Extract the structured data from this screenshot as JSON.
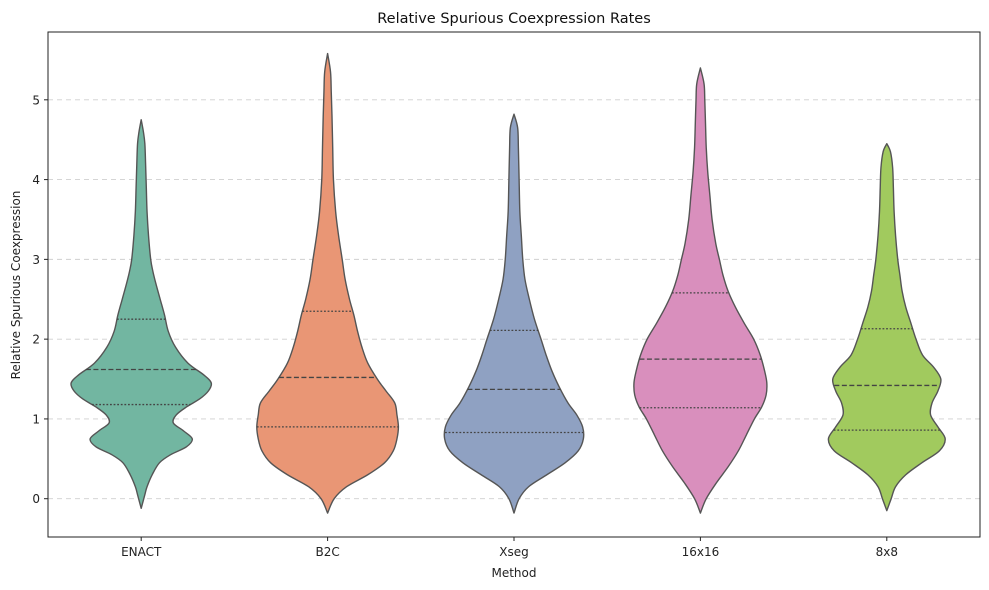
{
  "chart_data": {
    "type": "violin",
    "title": "Relative Spurious Coexpression Rates",
    "xlabel": "Method",
    "ylabel": "Relative Spurious Coexpression",
    "ylim": [
      -0.48,
      5.85
    ],
    "yticks": [
      0,
      1,
      2,
      3,
      4,
      5
    ],
    "categories": [
      "ENACT",
      "B2C",
      "Xseg",
      "16x16",
      "8x8"
    ],
    "grid": "y-dashed",
    "inner": "quartiles",
    "series": [
      {
        "category": "ENACT",
        "color": "#72b6a1",
        "min": -0.12,
        "max": 4.75,
        "quartiles": [
          1.18,
          1.62,
          2.25
        ],
        "density": [
          [
            -0.12,
            0.0
          ],
          [
            0.05,
            0.05
          ],
          [
            0.15,
            0.08
          ],
          [
            0.3,
            0.15
          ],
          [
            0.45,
            0.25
          ],
          [
            0.55,
            0.4
          ],
          [
            0.65,
            0.62
          ],
          [
            0.75,
            0.7
          ],
          [
            0.85,
            0.58
          ],
          [
            0.95,
            0.44
          ],
          [
            1.05,
            0.48
          ],
          [
            1.15,
            0.62
          ],
          [
            1.25,
            0.8
          ],
          [
            1.35,
            0.92
          ],
          [
            1.45,
            0.96
          ],
          [
            1.55,
            0.86
          ],
          [
            1.7,
            0.64
          ],
          [
            1.9,
            0.47
          ],
          [
            2.1,
            0.37
          ],
          [
            2.3,
            0.32
          ],
          [
            2.5,
            0.26
          ],
          [
            2.7,
            0.2
          ],
          [
            2.85,
            0.16
          ],
          [
            3.0,
            0.13
          ],
          [
            3.3,
            0.1
          ],
          [
            3.6,
            0.08
          ],
          [
            3.9,
            0.07
          ],
          [
            4.2,
            0.06
          ],
          [
            4.45,
            0.05
          ],
          [
            4.6,
            0.03
          ],
          [
            4.75,
            0.0
          ]
        ]
      },
      {
        "category": "B2C",
        "color": "#e99675",
        "min": -0.18,
        "max": 5.58,
        "quartiles": [
          0.9,
          1.52,
          2.35
        ],
        "density": [
          [
            -0.18,
            0.0
          ],
          [
            0.0,
            0.09
          ],
          [
            0.15,
            0.26
          ],
          [
            0.3,
            0.55
          ],
          [
            0.45,
            0.78
          ],
          [
            0.6,
            0.9
          ],
          [
            0.75,
            0.95
          ],
          [
            0.9,
            0.97
          ],
          [
            1.05,
            0.95
          ],
          [
            1.2,
            0.92
          ],
          [
            1.35,
            0.8
          ],
          [
            1.5,
            0.68
          ],
          [
            1.7,
            0.55
          ],
          [
            1.9,
            0.47
          ],
          [
            2.1,
            0.41
          ],
          [
            2.3,
            0.36
          ],
          [
            2.5,
            0.3
          ],
          [
            2.75,
            0.24
          ],
          [
            3.0,
            0.2
          ],
          [
            3.3,
            0.15
          ],
          [
            3.6,
            0.11
          ],
          [
            4.0,
            0.08
          ],
          [
            4.4,
            0.07
          ],
          [
            4.8,
            0.06
          ],
          [
            5.1,
            0.05
          ],
          [
            5.35,
            0.04
          ],
          [
            5.58,
            0.0
          ]
        ]
      },
      {
        "category": "Xseg",
        "color": "#8fa1c2",
        "min": -0.18,
        "max": 4.82,
        "quartiles": [
          0.83,
          1.37,
          2.11
        ],
        "density": [
          [
            -0.18,
            0.0
          ],
          [
            0.0,
            0.07
          ],
          [
            0.15,
            0.2
          ],
          [
            0.3,
            0.45
          ],
          [
            0.45,
            0.7
          ],
          [
            0.6,
            0.88
          ],
          [
            0.75,
            0.95
          ],
          [
            0.9,
            0.94
          ],
          [
            1.05,
            0.86
          ],
          [
            1.2,
            0.74
          ],
          [
            1.4,
            0.62
          ],
          [
            1.6,
            0.52
          ],
          [
            1.8,
            0.44
          ],
          [
            2.0,
            0.37
          ],
          [
            2.25,
            0.28
          ],
          [
            2.5,
            0.21
          ],
          [
            2.75,
            0.15
          ],
          [
            3.0,
            0.12
          ],
          [
            3.3,
            0.1
          ],
          [
            3.6,
            0.08
          ],
          [
            4.0,
            0.07
          ],
          [
            4.4,
            0.06
          ],
          [
            4.65,
            0.05
          ],
          [
            4.82,
            0.0
          ]
        ]
      },
      {
        "category": "16x16",
        "color": "#d98fbd",
        "min": -0.18,
        "max": 5.4,
        "quartiles": [
          1.14,
          1.75,
          2.58
        ],
        "density": [
          [
            -0.18,
            0.0
          ],
          [
            0.0,
            0.08
          ],
          [
            0.2,
            0.22
          ],
          [
            0.4,
            0.38
          ],
          [
            0.6,
            0.52
          ],
          [
            0.8,
            0.63
          ],
          [
            1.0,
            0.74
          ],
          [
            1.15,
            0.84
          ],
          [
            1.3,
            0.9
          ],
          [
            1.45,
            0.91
          ],
          [
            1.6,
            0.88
          ],
          [
            1.8,
            0.82
          ],
          [
            2.0,
            0.73
          ],
          [
            2.2,
            0.6
          ],
          [
            2.4,
            0.48
          ],
          [
            2.6,
            0.38
          ],
          [
            2.8,
            0.31
          ],
          [
            3.0,
            0.26
          ],
          [
            3.2,
            0.21
          ],
          [
            3.5,
            0.16
          ],
          [
            3.8,
            0.13
          ],
          [
            4.1,
            0.1
          ],
          [
            4.4,
            0.08
          ],
          [
            4.7,
            0.07
          ],
          [
            5.0,
            0.06
          ],
          [
            5.2,
            0.05
          ],
          [
            5.4,
            0.0
          ]
        ]
      },
      {
        "category": "8x8",
        "color": "#a1ca5e",
        "min": -0.15,
        "max": 4.45,
        "quartiles": [
          0.86,
          1.42,
          2.13
        ],
        "density": [
          [
            -0.15,
            0.0
          ],
          [
            0.0,
            0.06
          ],
          [
            0.15,
            0.12
          ],
          [
            0.3,
            0.26
          ],
          [
            0.45,
            0.48
          ],
          [
            0.6,
            0.72
          ],
          [
            0.75,
            0.8
          ],
          [
            0.9,
            0.7
          ],
          [
            1.05,
            0.6
          ],
          [
            1.2,
            0.62
          ],
          [
            1.35,
            0.7
          ],
          [
            1.5,
            0.74
          ],
          [
            1.65,
            0.64
          ],
          [
            1.8,
            0.49
          ],
          [
            2.0,
            0.4
          ],
          [
            2.2,
            0.33
          ],
          [
            2.4,
            0.26
          ],
          [
            2.6,
            0.21
          ],
          [
            2.8,
            0.18
          ],
          [
            3.0,
            0.15
          ],
          [
            3.3,
            0.12
          ],
          [
            3.6,
            0.1
          ],
          [
            3.9,
            0.09
          ],
          [
            4.15,
            0.08
          ],
          [
            4.35,
            0.05
          ],
          [
            4.45,
            0.0
          ]
        ]
      }
    ]
  }
}
